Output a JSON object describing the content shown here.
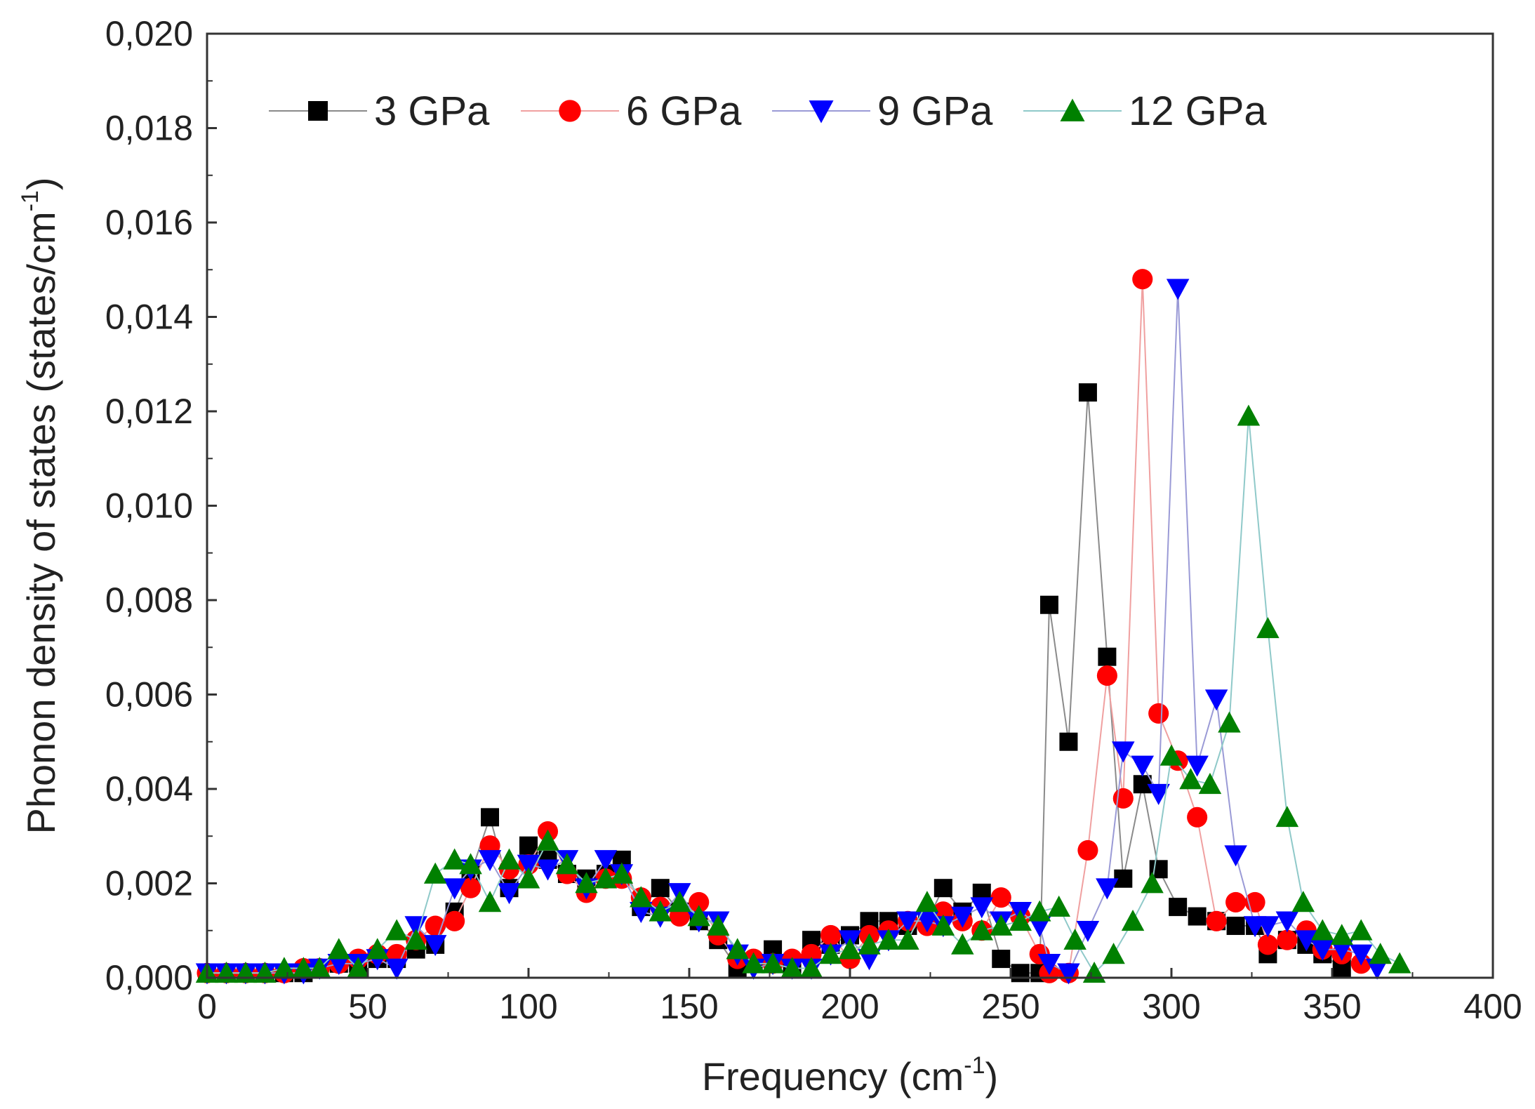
{
  "chart_data": {
    "type": "line",
    "title": "",
    "xlabel": "Frequency (cm",
    "xlabel_sup": "-1",
    "xlabel_close": ")",
    "ylabel": "Phonon density of states (states/cm",
    "ylabel_sup": "-1",
    "ylabel_close": ")",
    "xlim": [
      0,
      400
    ],
    "ylim": [
      0,
      0.02
    ],
    "xticks": [
      {
        "value": 0,
        "label": "0"
      },
      {
        "value": 50,
        "label": "50"
      },
      {
        "value": 100,
        "label": "100"
      },
      {
        "value": 150,
        "label": "150"
      },
      {
        "value": 200,
        "label": "200"
      },
      {
        "value": 250,
        "label": "250"
      },
      {
        "value": 300,
        "label": "300"
      },
      {
        "value": 350,
        "label": "350"
      },
      {
        "value": 400,
        "label": "400"
      }
    ],
    "yticks": [
      {
        "value": 0.0,
        "label": "0,000"
      },
      {
        "value": 0.002,
        "label": "0,002"
      },
      {
        "value": 0.004,
        "label": "0,004"
      },
      {
        "value": 0.006,
        "label": "0,006"
      },
      {
        "value": 0.008,
        "label": "0,008"
      },
      {
        "value": 0.01,
        "label": "0,010"
      },
      {
        "value": 0.012,
        "label": "0,012"
      },
      {
        "value": 0.014,
        "label": "0,014"
      },
      {
        "value": 0.016,
        "label": "0,016"
      },
      {
        "value": 0.018,
        "label": "0,018"
      },
      {
        "value": 0.02,
        "label": "0,020"
      }
    ],
    "legend_position": "top-left, horizontal",
    "grid": false,
    "series": [
      {
        "name": "3 GPa",
        "color": "#000000",
        "line_color": "#8a8a8a",
        "marker": "square",
        "x": [
          0,
          6,
          12,
          18,
          24,
          30,
          35,
          41,
          47,
          53,
          59,
          65,
          71,
          77,
          82,
          88,
          94,
          100,
          106,
          112,
          118,
          124,
          129,
          135,
          141,
          147,
          153,
          159,
          165,
          170,
          176,
          182,
          188,
          194,
          200,
          206,
          212,
          218,
          224,
          229,
          235,
          241,
          247,
          253,
          259,
          262,
          268,
          274,
          280,
          285,
          291,
          296,
          302,
          308,
          314,
          320,
          326,
          330,
          336,
          342,
          347,
          353
        ],
        "y": [
          0.0001,
          0.0001,
          0.0001,
          0.0001,
          0.0001,
          0.0001,
          0.0002,
          0.0003,
          0.0003,
          0.0004,
          0.0004,
          0.0006,
          0.0007,
          0.0014,
          0.0022,
          0.0034,
          0.0019,
          0.0028,
          0.0025,
          0.0022,
          0.0021,
          0.0022,
          0.0025,
          0.0015,
          0.0019,
          0.0014,
          0.0012,
          0.0008,
          0.0002,
          0.0003,
          0.0006,
          0.0002,
          0.0008,
          0.0007,
          0.0009,
          0.0012,
          0.0012,
          0.0011,
          0.0012,
          0.0019,
          0.0014,
          0.0018,
          0.0004,
          0.0001,
          0.0001,
          0.0079,
          0.005,
          0.0124,
          0.0068,
          0.0021,
          0.0041,
          0.0023,
          0.0015,
          0.0013,
          0.0012,
          0.0011,
          0.0011,
          0.0005,
          0.0008,
          0.0007,
          0.0005,
          0.0002
        ]
      },
      {
        "name": "6 GPa",
        "color": "#ff0000",
        "line_color": "#f0a0a0",
        "marker": "circle",
        "x": [
          0,
          6,
          12,
          18,
          24,
          30,
          35,
          41,
          47,
          53,
          59,
          65,
          71,
          77,
          82,
          88,
          94,
          100,
          106,
          112,
          118,
          124,
          129,
          135,
          141,
          147,
          153,
          159,
          165,
          170,
          176,
          182,
          188,
          194,
          200,
          206,
          212,
          218,
          224,
          229,
          235,
          241,
          247,
          253,
          259,
          262,
          268,
          274,
          280,
          285,
          291,
          296,
          302,
          308,
          314,
          320,
          326,
          330,
          336,
          342,
          347,
          353,
          359
        ],
        "y": [
          0.0001,
          0.0001,
          0.0001,
          0.0001,
          0.0001,
          0.0002,
          0.0002,
          0.0003,
          0.0004,
          0.0005,
          0.0005,
          0.0008,
          0.0011,
          0.0012,
          0.0019,
          0.0028,
          0.0023,
          0.0024,
          0.0031,
          0.0022,
          0.0018,
          0.0021,
          0.0021,
          0.0017,
          0.0015,
          0.0013,
          0.0016,
          0.0009,
          0.0004,
          0.0004,
          0.0003,
          0.0004,
          0.0005,
          0.0009,
          0.0004,
          0.0009,
          0.001,
          0.0012,
          0.0011,
          0.0014,
          0.0012,
          0.001,
          0.0017,
          0.0013,
          0.0005,
          0.0001,
          0.0001,
          0.0027,
          0.0064,
          0.0038,
          0.0148,
          0.0056,
          0.0046,
          0.0034,
          0.0012,
          0.0016,
          0.0016,
          0.0007,
          0.0008,
          0.001,
          0.0006,
          0.0005,
          0.0003
        ]
      },
      {
        "name": "9 GPa",
        "color": "#0000ff",
        "line_color": "#9a9ad6",
        "marker": "triangle-down",
        "x": [
          0,
          6,
          12,
          18,
          24,
          30,
          35,
          41,
          47,
          53,
          59,
          65,
          71,
          77,
          82,
          88,
          94,
          100,
          106,
          112,
          118,
          124,
          129,
          135,
          141,
          147,
          153,
          159,
          165,
          170,
          176,
          182,
          188,
          194,
          200,
          206,
          212,
          218,
          224,
          229,
          235,
          241,
          247,
          253,
          259,
          262,
          268,
          274,
          280,
          285,
          291,
          296,
          302,
          308,
          314,
          320,
          326,
          330,
          336,
          342,
          347,
          353,
          359,
          364
        ],
        "y": [
          0.0001,
          0.0001,
          0.0001,
          0.0001,
          0.0001,
          0.0001,
          0.0002,
          0.0003,
          0.0003,
          0.0004,
          0.0002,
          0.0011,
          0.0007,
          0.0019,
          0.0023,
          0.0025,
          0.0018,
          0.0024,
          0.0023,
          0.0025,
          0.0019,
          0.0025,
          0.0022,
          0.0014,
          0.0013,
          0.0018,
          0.0012,
          0.0012,
          0.0005,
          0.0002,
          0.0003,
          0.0002,
          0.0002,
          0.0005,
          0.0008,
          0.0004,
          0.0008,
          0.0012,
          0.0012,
          0.0011,
          0.0013,
          0.0015,
          0.0012,
          0.0014,
          0.0011,
          0.0003,
          0.0001,
          0.001,
          0.0019,
          0.0048,
          0.0045,
          0.0039,
          0.0146,
          0.0045,
          0.0059,
          0.0026,
          0.0011,
          0.0011,
          0.0012,
          0.0008,
          0.0006,
          0.0006,
          0.0005,
          0.0002
        ]
      },
      {
        "name": "12 GPa",
        "color": "#008000",
        "line_color": "#8fc9c9",
        "marker": "triangle-up",
        "x": [
          0,
          6,
          12,
          18,
          24,
          30,
          35,
          41,
          47,
          53,
          59,
          65,
          71,
          77,
          82,
          88,
          94,
          100,
          106,
          112,
          118,
          124,
          129,
          135,
          141,
          147,
          153,
          159,
          165,
          170,
          176,
          182,
          188,
          194,
          200,
          206,
          212,
          218,
          224,
          229,
          235,
          241,
          247,
          253,
          259,
          265,
          270,
          276,
          282,
          288,
          294,
          300,
          306,
          312,
          318,
          324,
          330,
          336,
          341,
          347,
          353,
          359,
          365,
          371
        ],
        "y": [
          0.0001,
          0.0001,
          0.0001,
          0.0001,
          0.0002,
          0.0002,
          0.0002,
          0.0006,
          0.0002,
          0.0006,
          0.001,
          0.0008,
          0.0022,
          0.0025,
          0.0024,
          0.0016,
          0.0025,
          0.0021,
          0.0029,
          0.0024,
          0.002,
          0.0021,
          0.0022,
          0.0017,
          0.0014,
          0.0016,
          0.0013,
          0.0011,
          0.0006,
          0.0003,
          0.0003,
          0.0002,
          0.0002,
          0.0005,
          0.0006,
          0.0007,
          0.0008,
          0.0008,
          0.0016,
          0.0011,
          0.0007,
          0.001,
          0.0011,
          0.0012,
          0.0014,
          0.0015,
          0.0008,
          0.0001,
          0.0005,
          0.0012,
          0.002,
          0.0047,
          0.0042,
          0.0041,
          0.0054,
          0.0119,
          0.0074,
          0.0034,
          0.0016,
          0.001,
          0.0009,
          0.001,
          0.0005,
          0.0003
        ]
      }
    ]
  }
}
